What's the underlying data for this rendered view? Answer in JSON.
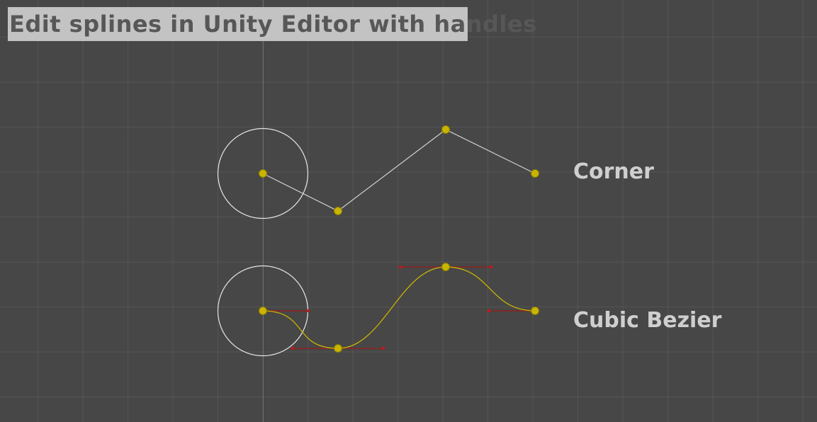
{
  "title": "Edit splines in Unity Editor with handles",
  "labels": {
    "corner": "Corner",
    "cubic_bezier": "Cubic Bezier"
  },
  "colors": {
    "background": "#474747",
    "point": "#c9b400",
    "bezier_curve": "#c9b400",
    "tangent_handle": "#a01818",
    "corner_line": "#d0d0d0",
    "selection_circle": "#e6e6e6"
  },
  "icons": [
    "spline-point-icon",
    "selection-circle-icon",
    "tangent-handle-icon"
  ]
}
